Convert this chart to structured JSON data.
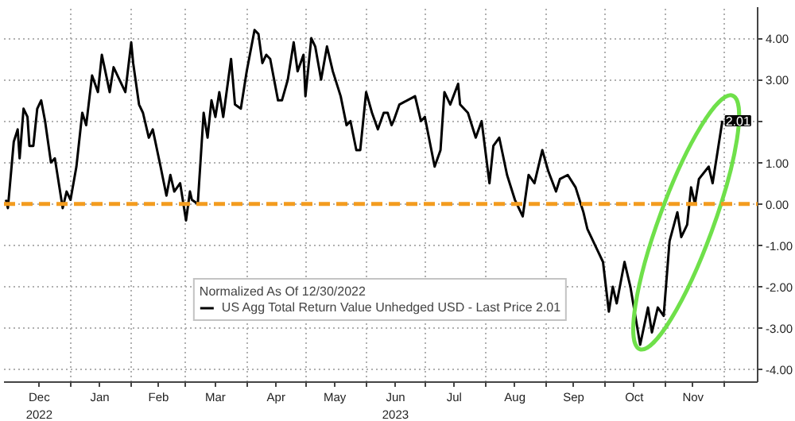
{
  "chart_data": {
    "type": "line",
    "legend_title": "Normalized As Of 12/30/2022",
    "x": [
      "2022-11-29",
      "2022-11-30",
      "2022-12-03",
      "2022-12-05",
      "2022-12-06",
      "2022-12-08",
      "2022-12-10",
      "2022-12-11",
      "2022-12-13",
      "2022-12-15",
      "2022-12-17",
      "2022-12-19",
      "2022-12-22",
      "2022-12-24",
      "2022-12-28",
      "2022-12-30",
      "2023-01-01",
      "2023-01-04",
      "2023-01-07",
      "2023-01-09",
      "2023-01-12",
      "2023-01-15",
      "2023-01-17",
      "2023-01-21",
      "2023-01-23",
      "2023-01-26",
      "2023-01-29",
      "2023-02-01",
      "2023-02-02",
      "2023-02-05",
      "2023-02-07",
      "2023-02-10",
      "2023-02-12",
      "2023-02-16",
      "2023-02-19",
      "2023-02-21",
      "2023-02-23",
      "2023-02-26",
      "2023-03-01",
      "2023-03-03",
      "2023-03-04",
      "2023-03-07",
      "2023-03-10",
      "2023-03-12",
      "2023-03-14",
      "2023-03-16",
      "2023-03-18",
      "2023-03-20",
      "2023-03-24",
      "2023-03-26",
      "2023-03-29",
      "2023-04-01",
      "2023-04-05",
      "2023-04-07",
      "2023-04-09",
      "2023-04-11",
      "2023-04-13",
      "2023-04-17",
      "2023-04-19",
      "2023-04-22",
      "2023-04-25",
      "2023-04-27",
      "2023-04-30",
      "2023-05-01",
      "2023-05-04",
      "2023-05-06",
      "2023-05-09",
      "2023-05-12",
      "2023-05-15",
      "2023-05-19",
      "2023-05-22",
      "2023-05-24",
      "2023-05-27",
      "2023-05-29",
      "2023-06-01",
      "2023-06-04",
      "2023-06-07",
      "2023-06-10",
      "2023-06-12",
      "2023-06-14",
      "2023-06-15",
      "2023-06-18",
      "2023-06-22",
      "2023-06-26",
      "2023-06-29",
      "2023-07-01",
      "2023-07-06",
      "2023-07-09",
      "2023-07-11",
      "2023-07-14",
      "2023-07-18",
      "2023-07-19",
      "2023-07-23",
      "2023-07-27",
      "2023-07-30",
      "2023-08-03",
      "2023-08-05",
      "2023-08-08",
      "2023-08-12",
      "2023-08-16",
      "2023-08-20",
      "2023-08-23",
      "2023-08-26",
      "2023-08-30",
      "2023-09-02",
      "2023-09-06",
      "2023-09-08",
      "2023-09-12",
      "2023-09-16",
      "2023-09-20",
      "2023-09-22",
      "2023-09-27",
      "2023-09-30",
      "2023-10-03",
      "2023-10-05",
      "2023-10-07",
      "2023-10-11",
      "2023-10-14",
      "2023-10-19",
      "2023-10-23",
      "2023-10-25",
      "2023-10-28",
      "2023-10-31",
      "2023-11-03",
      "2023-11-07",
      "2023-11-09",
      "2023-11-12",
      "2023-11-14",
      "2023-11-16",
      "2023-11-18",
      "2023-11-23",
      "2023-11-25",
      "2023-11-30"
    ],
    "series": [
      {
        "name": "US Agg Total Return Value Unhedged USD - Last Price 2.01",
        "color": "#000000",
        "values": [
          0.1,
          -0.1,
          1.5,
          1.8,
          1.1,
          2.3,
          2.1,
          1.4,
          1.4,
          2.3,
          2.5,
          2.0,
          1.0,
          1.1,
          -0.1,
          0.3,
          0.1,
          0.9,
          2.2,
          1.9,
          3.1,
          2.7,
          3.6,
          2.7,
          3.3,
          3.0,
          2.7,
          3.9,
          3.4,
          2.4,
          2.2,
          1.6,
          1.8,
          0.9,
          0.2,
          0.7,
          0.3,
          0.5,
          -0.4,
          0.3,
          0.1,
          0.0,
          2.2,
          1.6,
          2.5,
          2.1,
          2.7,
          2.1,
          3.5,
          2.4,
          2.3,
          3.2,
          4.2,
          4.1,
          3.4,
          3.6,
          3.5,
          2.5,
          2.5,
          3.0,
          3.9,
          3.2,
          3.6,
          2.6,
          4.0,
          3.8,
          3.0,
          3.8,
          3.2,
          2.6,
          1.9,
          2.0,
          1.3,
          1.3,
          2.7,
          2.2,
          1.8,
          2.2,
          2.2,
          1.9,
          2.0,
          2.4,
          2.5,
          2.6,
          2.0,
          2.1,
          0.9,
          1.3,
          2.7,
          2.4,
          2.9,
          2.4,
          2.2,
          1.6,
          2.0,
          0.5,
          1.4,
          1.6,
          0.7,
          0.1,
          -0.3,
          0.7,
          0.5,
          1.3,
          0.8,
          0.3,
          0.6,
          0.7,
          0.4,
          -0.2,
          -0.6,
          -1.1,
          -1.4,
          -2.6,
          -2.0,
          -2.4,
          -1.4,
          -2.0,
          -3.4,
          -2.5,
          -3.1,
          -2.5,
          -2.7,
          -0.9,
          -0.2,
          -0.8,
          -0.5,
          0.4,
          0.0,
          0.6,
          0.9,
          0.5,
          2.01
        ]
      }
    ],
    "xlim": [
      "2022-11-28",
      "2023-12-18"
    ],
    "xticks": [
      {
        "value": "2022-12-16",
        "label": "Dec\n2022"
      },
      {
        "value": "2023-01-01",
        "label": null
      },
      {
        "value": "2023-01-16",
        "label": "Jan"
      },
      {
        "value": "2023-02-01",
        "label": null
      },
      {
        "value": "2023-02-15",
        "label": "Feb"
      },
      {
        "value": "2023-03-01",
        "label": null
      },
      {
        "value": "2023-03-16",
        "label": "Mar"
      },
      {
        "value": "2023-04-01",
        "label": null
      },
      {
        "value": "2023-04-16",
        "label": "Apr"
      },
      {
        "value": "2023-05-01",
        "label": null
      },
      {
        "value": "2023-05-16",
        "label": "May"
      },
      {
        "value": "2023-06-01",
        "label": null
      },
      {
        "value": "2023-06-16",
        "label": "Jun\n2023"
      },
      {
        "value": "2023-07-01",
        "label": null
      },
      {
        "value": "2023-07-16",
        "label": "Jul"
      },
      {
        "value": "2023-08-01",
        "label": null
      },
      {
        "value": "2023-08-16",
        "label": "Aug"
      },
      {
        "value": "2023-09-01",
        "label": null
      },
      {
        "value": "2023-09-15",
        "label": "Sep"
      },
      {
        "value": "2023-10-01",
        "label": null
      },
      {
        "value": "2023-10-16",
        "label": "Oct"
      },
      {
        "value": "2023-11-01",
        "label": null
      },
      {
        "value": "2023-11-15",
        "label": "Nov"
      },
      {
        "value": "2023-12-01",
        "label": null
      }
    ],
    "ylim": [
      -4.3,
      4.75
    ],
    "yticks": [
      {
        "value": -4,
        "label": "-4.00"
      },
      {
        "value": -3,
        "label": "-3.00"
      },
      {
        "value": -2,
        "label": "-2.00"
      },
      {
        "value": -1,
        "label": "-1.00"
      },
      {
        "value": 0,
        "label": "0.00"
      },
      {
        "value": 1,
        "label": "1.00"
      },
      {
        "value": 2,
        "label": null
      },
      {
        "value": 3,
        "label": "3.00"
      },
      {
        "value": 4,
        "label": "4.00"
      }
    ],
    "ref_lines": [
      {
        "axis": "y",
        "value": 0,
        "color": "#f39c1f",
        "line_style": "dashed"
      }
    ],
    "annotations": [
      {
        "text": "2.01",
        "x": "2023-11-30",
        "y": 2.01
      }
    ],
    "grid": true,
    "legend": "bottom",
    "line_style": "solid"
  }
}
